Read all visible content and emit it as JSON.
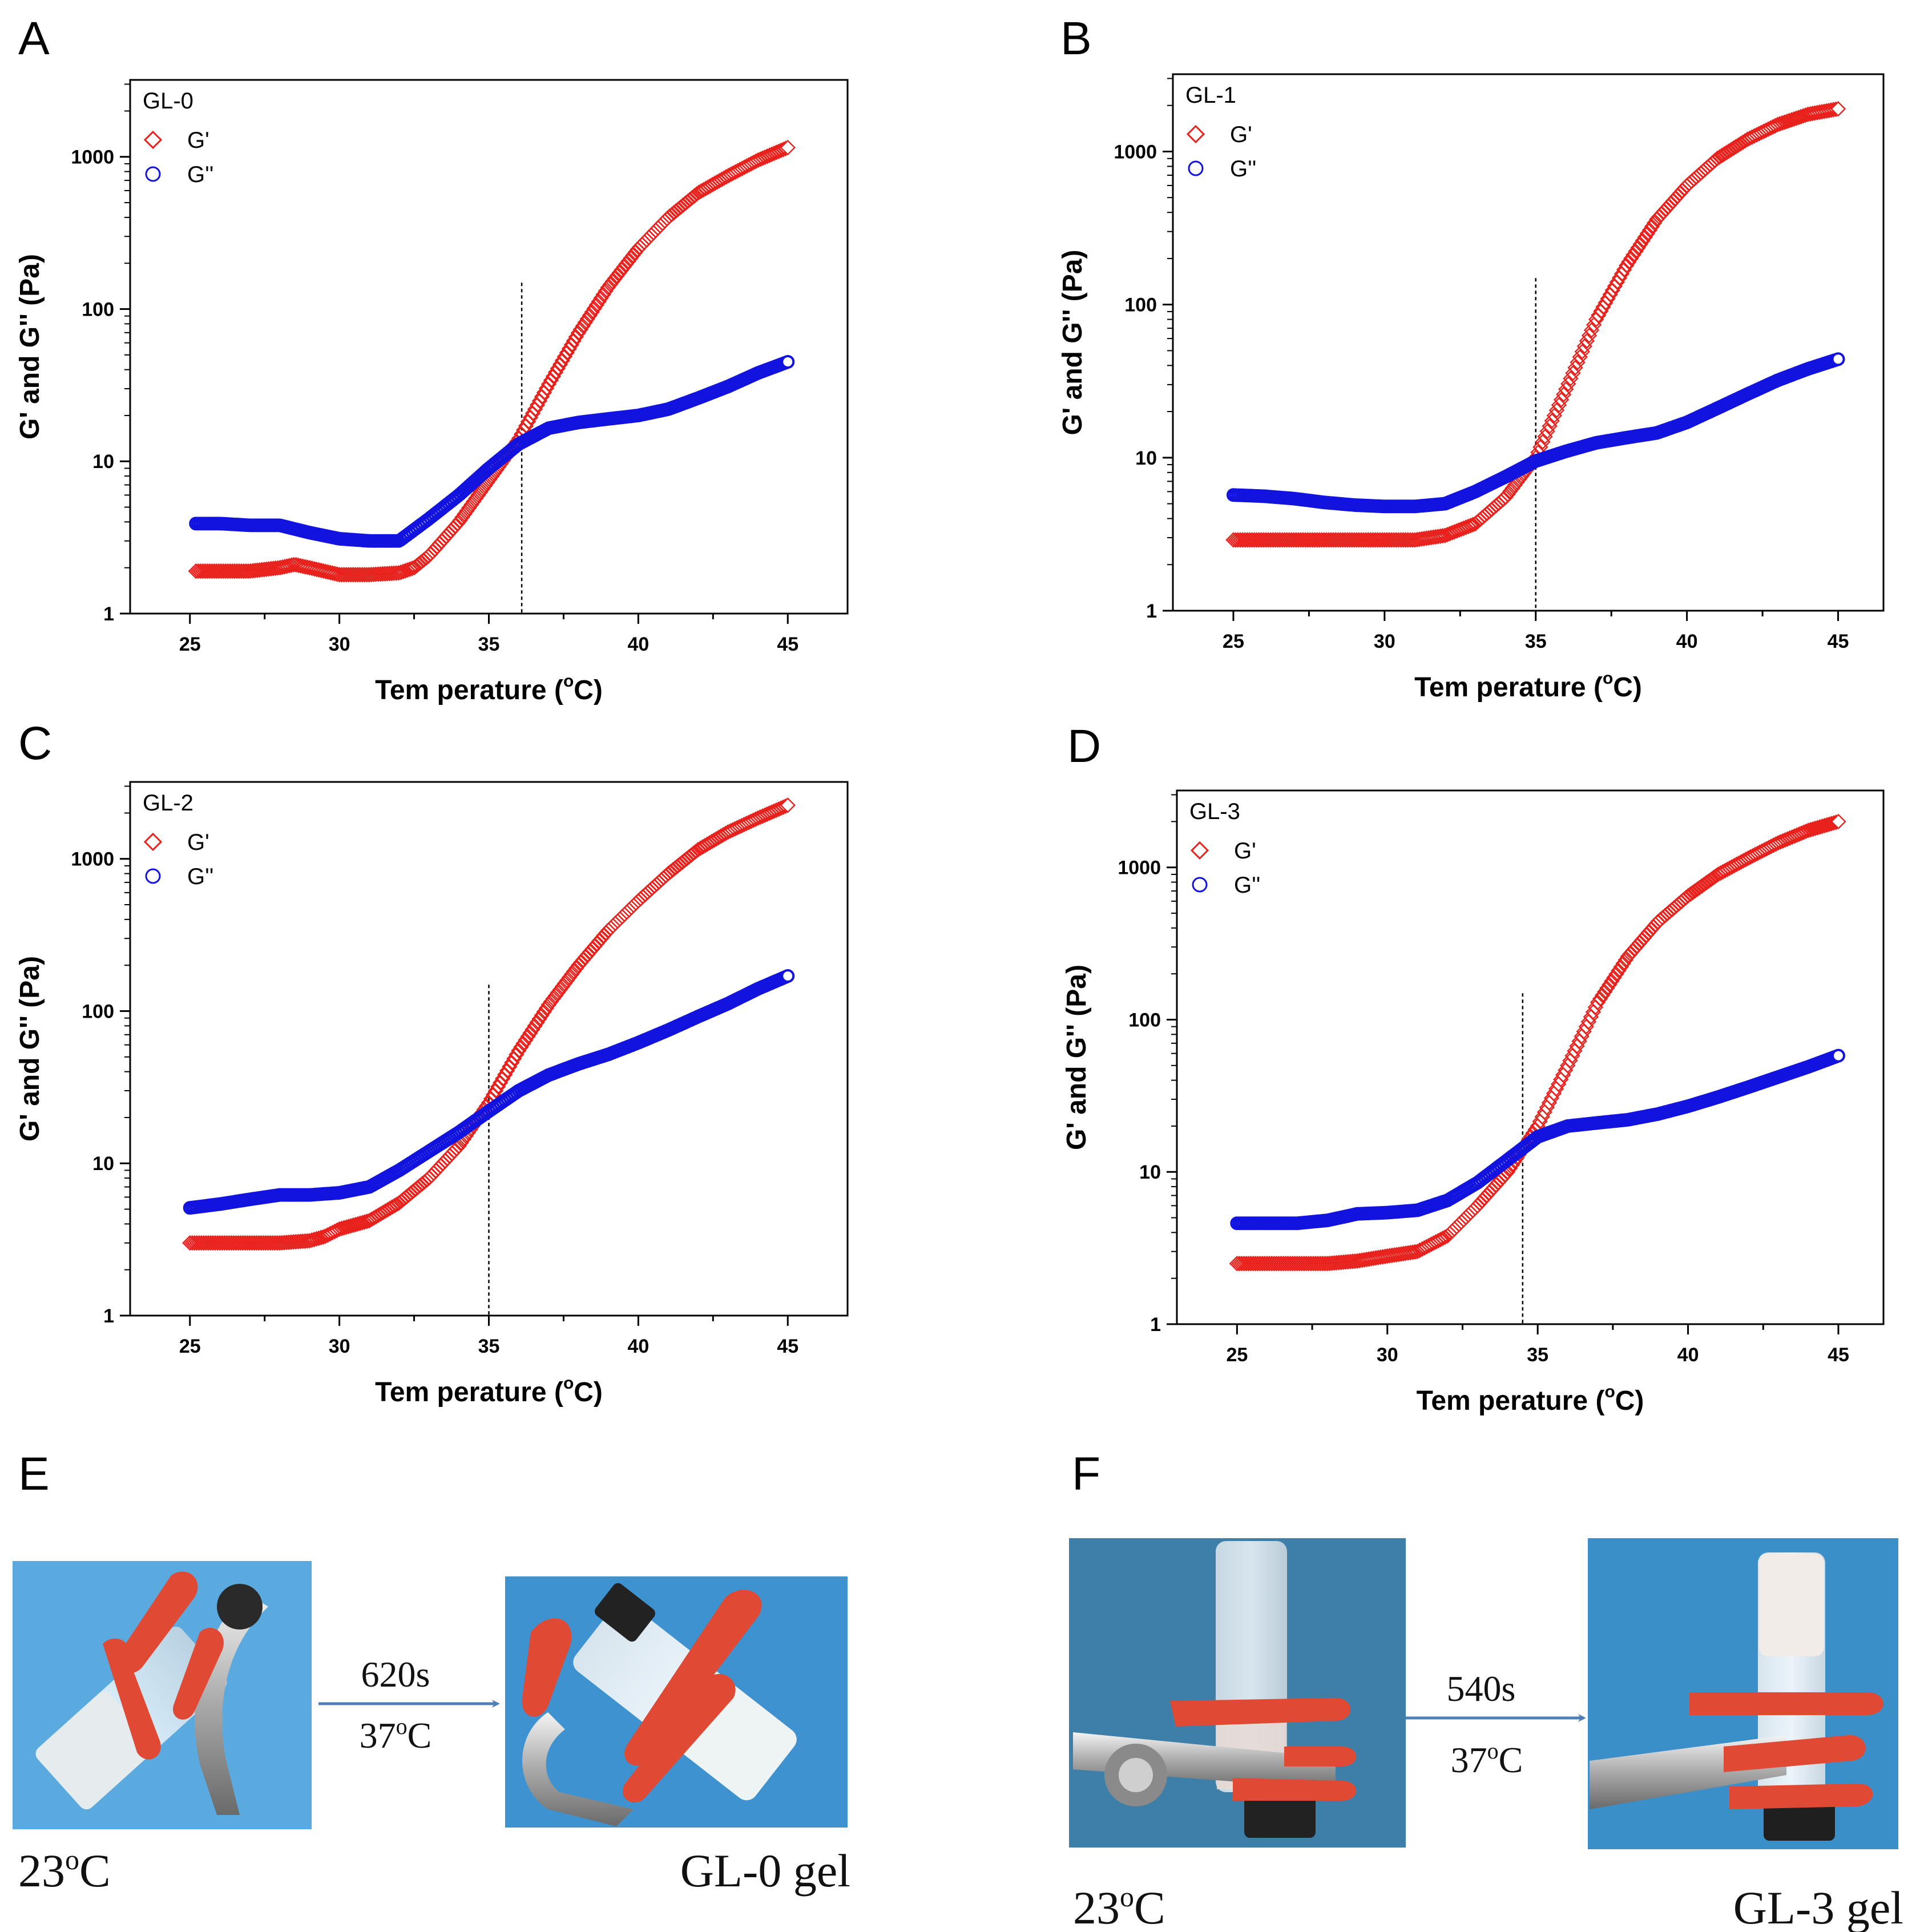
{
  "figure": {
    "panel_letters": [
      "A",
      "B",
      "C",
      "D",
      "E",
      "F"
    ],
    "colors": {
      "g_prime": "#e8211d",
      "g_double_prime": "#1313e0",
      "axis": "#000000",
      "photo_bg_E": "#4fa3dd",
      "photo_bg_F": "#3d7fa8",
      "clamp": "#e04a34",
      "arrow": "#4f7fb5"
    }
  },
  "chart_data": [
    {
      "type": "scatter",
      "panel": "A",
      "sample_label": "GL-0",
      "xlabel": "Tem perature (",
      "xunit_sup": "o",
      "xunit_tail": "C)",
      "ylabel": "G' and G'' (Pa)",
      "xlim": [
        23,
        47
      ],
      "ylim": [
        1,
        3200
      ],
      "yscale": "log",
      "xticks": [
        25,
        30,
        35,
        40,
        45
      ],
      "yticks": [
        1,
        10,
        100,
        1000
      ],
      "crossover_x": 36.1,
      "legend": [
        "G'",
        "G''"
      ],
      "series": [
        {
          "name": "G'",
          "marker": "diamond",
          "x": [
            25.2,
            26,
            27,
            28,
            28.5,
            29,
            30,
            31,
            32,
            32.5,
            33,
            34,
            35,
            36,
            37,
            38,
            39,
            40,
            41,
            42,
            43,
            44,
            45
          ],
          "y": [
            1.9,
            1.9,
            1.9,
            2.0,
            2.1,
            2.0,
            1.8,
            1.8,
            1.85,
            2.0,
            2.4,
            4.0,
            7.5,
            14,
            32,
            70,
            140,
            250,
            400,
            580,
            750,
            950,
            1150
          ]
        },
        {
          "name": "G''",
          "marker": "circle",
          "x": [
            25.2,
            26,
            27,
            28,
            29,
            30,
            31,
            32,
            33,
            34,
            35,
            36,
            37,
            38,
            39,
            40,
            41,
            42,
            43,
            44,
            45
          ],
          "y": [
            3.9,
            3.9,
            3.8,
            3.8,
            3.4,
            3.1,
            3.0,
            3.0,
            4.2,
            6.0,
            9.0,
            13,
            16.5,
            18,
            19,
            20,
            22,
            26,
            31,
            38,
            45
          ]
        }
      ]
    },
    {
      "type": "scatter",
      "panel": "B",
      "sample_label": "GL-1",
      "xlabel": "Tem perature (",
      "xunit_sup": "o",
      "xunit_tail": "C)",
      "ylabel": "G' and G'' (Pa)",
      "xlim": [
        23,
        46.5
      ],
      "ylim": [
        1,
        3200
      ],
      "yscale": "log",
      "xticks": [
        25,
        30,
        35,
        40,
        45
      ],
      "yticks": [
        1,
        10,
        100,
        1000
      ],
      "crossover_x": 35,
      "legend": [
        "G'",
        "G''"
      ],
      "series": [
        {
          "name": "G'",
          "marker": "diamond",
          "x": [
            25,
            26,
            27,
            28,
            29,
            30,
            31,
            32,
            33,
            34,
            35,
            36,
            37,
            38,
            39,
            40,
            41,
            42,
            43,
            44,
            45
          ],
          "y": [
            2.9,
            2.9,
            2.9,
            2.9,
            2.9,
            2.9,
            2.9,
            3.1,
            3.7,
            5.5,
            10,
            28,
            80,
            180,
            360,
            600,
            900,
            1200,
            1500,
            1750,
            1900
          ]
        },
        {
          "name": "G''",
          "marker": "circle",
          "x": [
            25,
            26,
            27,
            28,
            29,
            30,
            31,
            32,
            33,
            34,
            35,
            36,
            37,
            38,
            39,
            40,
            41,
            42,
            43,
            44,
            45
          ],
          "y": [
            5.7,
            5.6,
            5.4,
            5.1,
            4.9,
            4.8,
            4.8,
            5.0,
            6.0,
            7.5,
            9.5,
            11,
            12.5,
            13.5,
            14.5,
            17,
            21,
            26,
            32,
            38,
            44
          ]
        }
      ]
    },
    {
      "type": "scatter",
      "panel": "C",
      "sample_label": "GL-2",
      "xlabel": "Tem perature (",
      "xunit_sup": "o",
      "xunit_tail": "C)",
      "ylabel": "G' and G'' (Pa)",
      "xlim": [
        23,
        47
      ],
      "ylim": [
        1,
        3200
      ],
      "yscale": "log",
      "xticks": [
        25,
        30,
        35,
        40,
        45
      ],
      "yticks": [
        1,
        10,
        100,
        1000
      ],
      "crossover_x": 35,
      "legend": [
        "G'",
        "G''"
      ],
      "series": [
        {
          "name": "G'",
          "marker": "diamond",
          "x": [
            25,
            26,
            27,
            28,
            29,
            29.5,
            30,
            31,
            32,
            33,
            34,
            35,
            36,
            37,
            38,
            39,
            40,
            41,
            42,
            43,
            44,
            45
          ],
          "y": [
            3.0,
            3.0,
            3.0,
            3.0,
            3.1,
            3.3,
            3.7,
            4.2,
            5.5,
            8.0,
            13,
            25,
            55,
            110,
            200,
            340,
            530,
            800,
            1150,
            1500,
            1850,
            2250
          ]
        },
        {
          "name": "G''",
          "marker": "circle",
          "x": [
            25,
            26,
            27,
            28,
            29,
            30,
            31,
            32,
            33,
            34,
            35,
            36,
            37,
            38,
            39,
            40,
            41,
            42,
            43,
            44,
            45
          ],
          "y": [
            5.1,
            5.4,
            5.8,
            6.2,
            6.2,
            6.4,
            7.0,
            9.0,
            12,
            16,
            22,
            30,
            38,
            45,
            52,
            62,
            75,
            92,
            112,
            140,
            170
          ]
        }
      ]
    },
    {
      "type": "scatter",
      "panel": "D",
      "sample_label": "GL-3",
      "xlabel": "Tem perature (",
      "xunit_sup": "o",
      "xunit_tail": "C)",
      "ylabel": "G' and G'' (Pa)",
      "xlim": [
        23,
        46.5
      ],
      "ylim": [
        1,
        3200
      ],
      "yscale": "log",
      "xticks": [
        25,
        30,
        35,
        40,
        45
      ],
      "yticks": [
        1,
        10,
        100,
        1000
      ],
      "crossover_x": 34.5,
      "legend": [
        "G'",
        "G''"
      ],
      "series": [
        {
          "name": "G'",
          "marker": "diamond",
          "x": [
            25,
            26,
            27,
            28,
            29,
            30,
            31,
            32,
            33,
            34,
            35,
            36,
            37,
            38,
            39,
            40,
            41,
            42,
            43,
            44,
            45
          ],
          "y": [
            2.5,
            2.5,
            2.5,
            2.5,
            2.6,
            2.8,
            3.0,
            3.8,
            6.0,
            10,
            20,
            50,
            130,
            260,
            440,
            650,
            900,
            1150,
            1450,
            1750,
            2000
          ]
        },
        {
          "name": "G''",
          "marker": "circle",
          "x": [
            25,
            26,
            27,
            28,
            29,
            30,
            31,
            32,
            33,
            34,
            35,
            36,
            37,
            38,
            39,
            40,
            41,
            42,
            43,
            44,
            45
          ],
          "y": [
            4.6,
            4.6,
            4.6,
            4.8,
            5.3,
            5.4,
            5.6,
            6.5,
            8.5,
            12,
            17,
            20,
            21,
            22,
            24,
            27,
            31,
            36,
            42,
            49,
            58
          ]
        }
      ]
    }
  ],
  "photos": {
    "E": {
      "before_label": "23°C",
      "time": "620s",
      "temp_prefix": "37",
      "temp_sup": "o",
      "temp_suffix": "C",
      "before_prefix": "23",
      "before_sup": "o",
      "before_suffix": "C",
      "after_label": "GL-0 gel"
    },
    "F": {
      "time": "540s",
      "temp_prefix": "37",
      "temp_sup": "o",
      "temp_suffix": "C",
      "before_prefix": "23",
      "before_sup": "o",
      "before_suffix": "C",
      "after_label": "GL-3 gel"
    }
  }
}
